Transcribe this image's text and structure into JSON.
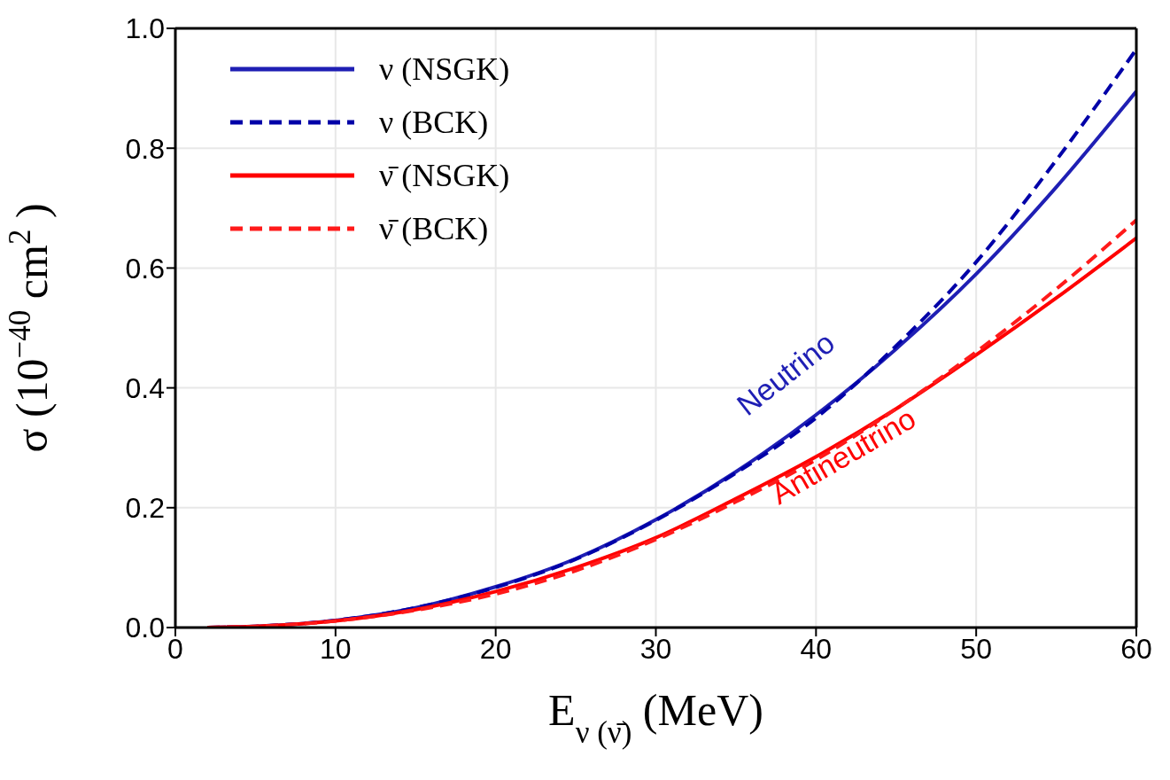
{
  "chart_data": {
    "type": "line",
    "xlabel": "E$_{ν (ν̄)}$ (MeV)",
    "ylabel": "σ (10$^{−40}$ cm$^{2}$)",
    "x": [
      2,
      5,
      10,
      15,
      20,
      25,
      30,
      35,
      40,
      45,
      50,
      55,
      60
    ],
    "series": [
      {
        "name": "ν (NSGK)",
        "color": "#1f1fb4",
        "line_style": "solid",
        "values": [
          0,
          0.002,
          0.012,
          0.033,
          0.068,
          0.115,
          0.18,
          0.26,
          0.355,
          0.465,
          0.59,
          0.735,
          0.895
        ]
      },
      {
        "name": "ν (BCK)",
        "color": "#0000a8",
        "line_style": "dashed",
        "values": [
          0,
          0.002,
          0.012,
          0.033,
          0.067,
          0.114,
          0.179,
          0.258,
          0.35,
          0.47,
          0.61,
          0.78,
          0.965
        ]
      },
      {
        "name": "ν̄ (NSGK)",
        "color": "#ff0000",
        "line_style": "solid",
        "values": [
          0,
          0.002,
          0.011,
          0.03,
          0.06,
          0.1,
          0.15,
          0.215,
          0.285,
          0.365,
          0.455,
          0.55,
          0.65
        ]
      },
      {
        "name": "ν̄ (BCK)",
        "color": "#ff1a1a",
        "line_style": "dashed",
        "values": [
          0,
          0.002,
          0.011,
          0.029,
          0.056,
          0.095,
          0.147,
          0.21,
          0.28,
          0.365,
          0.46,
          0.565,
          0.68
        ]
      }
    ],
    "annotations": [
      "Neutrino",
      "Antineutrino"
    ],
    "xlim": [
      0,
      60
    ],
    "xticks": [
      0,
      10,
      20,
      30,
      40,
      50,
      60
    ],
    "ylim": [
      0,
      1
    ],
    "yticks": [
      {
        "value": 0,
        "label": "0.0"
      },
      0.2,
      0.4,
      0.6,
      0.8,
      {
        "value": 1,
        "label": "1.0"
      }
    ],
    "grid": true,
    "legend": "top left",
    "marker": "none"
  }
}
